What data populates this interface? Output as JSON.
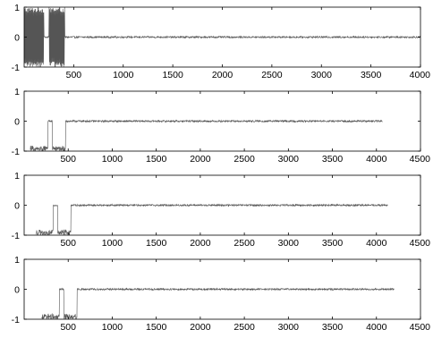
{
  "chart_data": [
    {
      "type": "line",
      "title": "",
      "xlabel": "",
      "ylabel": "",
      "xlim": [
        0,
        4000
      ],
      "ylim": [
        -1,
        1
      ],
      "xticks": [
        "500",
        "1000",
        "1500",
        "2000",
        "2500",
        "3000",
        "3500",
        "4000"
      ],
      "yticks": [
        "-1",
        "0",
        "1"
      ],
      "signal": {
        "length": 4000,
        "burst_segments": [
          [
            0,
            200
          ],
          [
            250,
            410
          ]
        ],
        "burst_amplitude": 1,
        "gap_interval": [
          200,
          250
        ],
        "noise_amplitude": 0.03
      }
    },
    {
      "type": "line",
      "title": "",
      "xlabel": "",
      "ylabel": "",
      "xlim": [
        0,
        4500
      ],
      "ylim": [
        -1,
        1
      ],
      "xticks": [
        "500",
        "1000",
        "1500",
        "2000",
        "2500",
        "3000",
        "3500",
        "4000",
        "4500"
      ],
      "yticks": [
        "-1",
        "0",
        "1"
      ],
      "signal": {
        "length": 4070,
        "burst_segments": [
          [
            70,
            270
          ],
          [
            320,
            470
          ]
        ],
        "burst_amplitude": 1,
        "gap_interval": [
          270,
          320
        ],
        "noise_amplitude": 0.03
      }
    },
    {
      "type": "line",
      "title": "",
      "xlabel": "",
      "ylabel": "",
      "xlim": [
        0,
        4500
      ],
      "ylim": [
        -1,
        1
      ],
      "xticks": [
        "500",
        "1000",
        "1500",
        "2000",
        "2500",
        "3000",
        "3500",
        "4000",
        "4500"
      ],
      "yticks": [
        "-1",
        "0",
        "1"
      ],
      "signal": {
        "length": 4130,
        "burst_segments": [
          [
            130,
            330
          ],
          [
            380,
            530
          ]
        ],
        "burst_amplitude": 1,
        "gap_interval": [
          330,
          380
        ],
        "noise_amplitude": 0.03
      }
    },
    {
      "type": "line",
      "title": "",
      "xlabel": "",
      "ylabel": "",
      "xlim": [
        0,
        4500
      ],
      "ylim": [
        -1,
        1
      ],
      "xticks": [
        "500",
        "1000",
        "1500",
        "2000",
        "2500",
        "3000",
        "3500",
        "4000",
        "4500"
      ],
      "yticks": [
        "-1",
        "0",
        "1"
      ],
      "signal": {
        "length": 4200,
        "burst_segments": [
          [
            200,
            400
          ],
          [
            450,
            600
          ]
        ],
        "burst_amplitude": 1,
        "gap_interval": [
          400,
          450
        ],
        "noise_amplitude": 0.03
      }
    }
  ],
  "colors": {
    "signal": "#555555",
    "axes": "#000000",
    "background": "#ffffff"
  }
}
